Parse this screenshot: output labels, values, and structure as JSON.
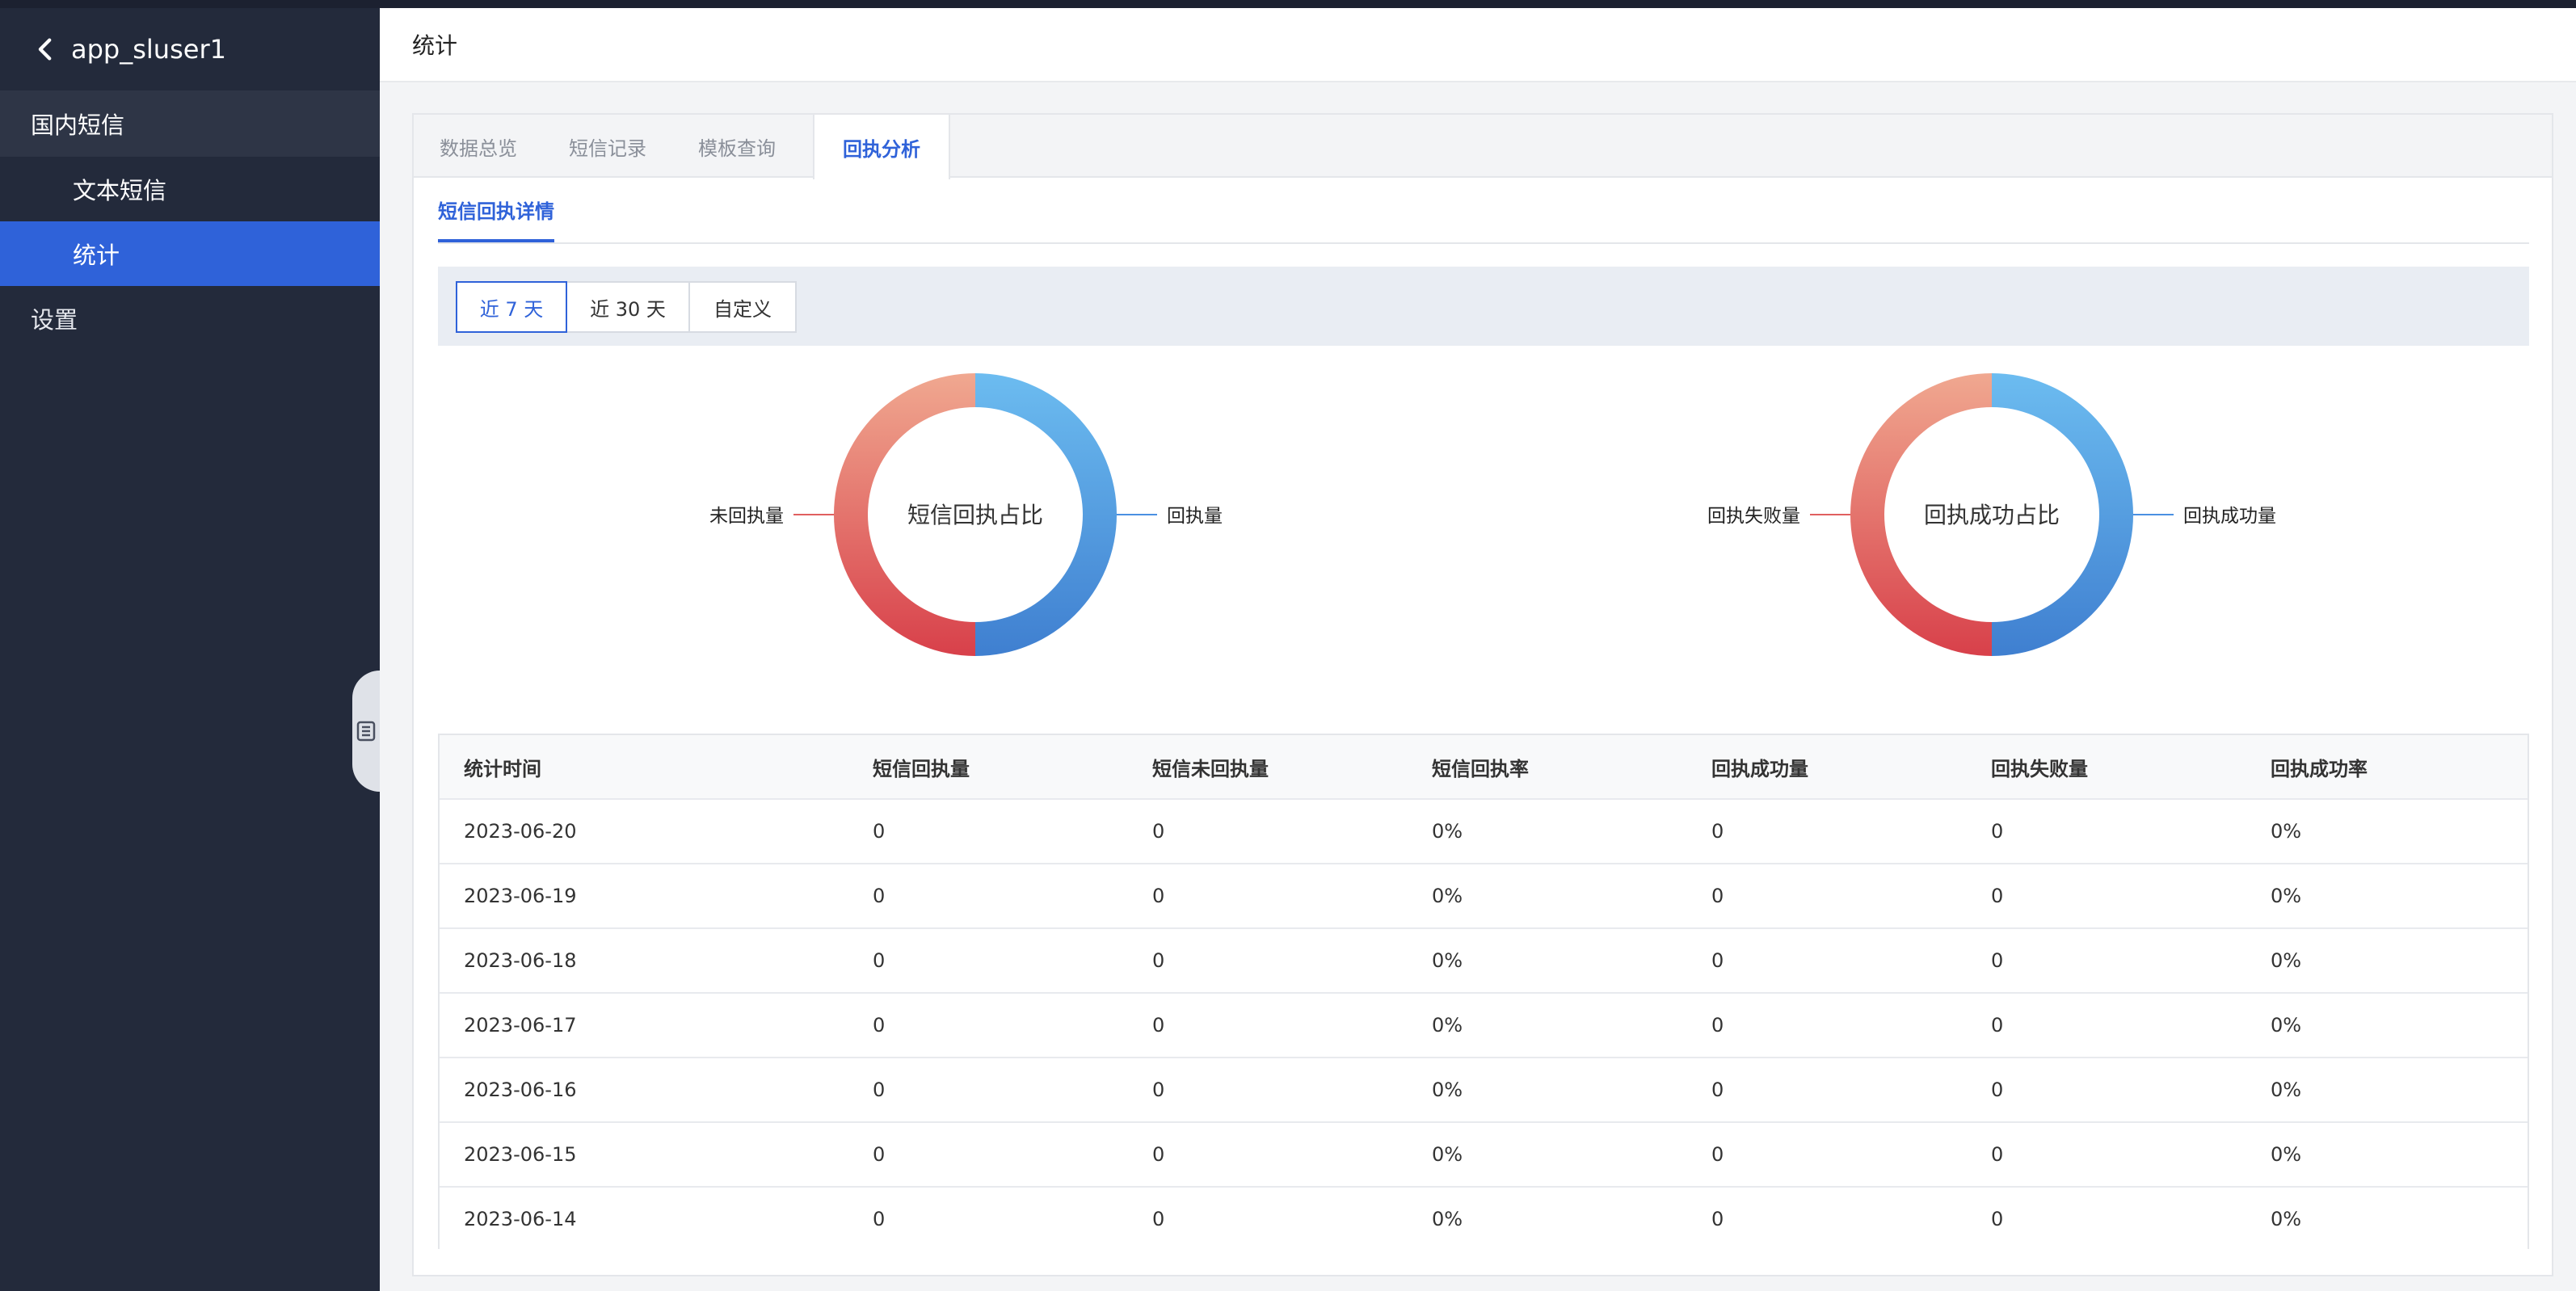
{
  "app": {
    "back_label": "app_sluser1"
  },
  "sidebar": {
    "group_label": "国内短信",
    "sub_items": [
      {
        "label": "文本短信"
      },
      {
        "label": "统计"
      }
    ],
    "settings_label": "设置"
  },
  "header": {
    "title": "统计"
  },
  "tabs": [
    {
      "label": "数据总览"
    },
    {
      "label": "短信记录"
    },
    {
      "label": "模板查询"
    },
    {
      "label": "回执分析"
    }
  ],
  "subtab": {
    "label": "短信回执详情"
  },
  "range_buttons": [
    {
      "label": "近 7 天"
    },
    {
      "label": "近 30 天"
    },
    {
      "label": "自定义"
    }
  ],
  "colors": {
    "accent": "#2f62d9",
    "sidebar_bg": "#232a3b",
    "donut_blue": "#4a90e2",
    "donut_red": "#e06060"
  },
  "chart_data": [
    {
      "type": "pie",
      "title": "短信回执占比",
      "labels": [
        "回执量",
        "未回执量"
      ],
      "values": [
        0,
        0
      ]
    },
    {
      "type": "pie",
      "title": "回执成功占比",
      "labels": [
        "回执成功量",
        "回执失败量"
      ],
      "values": [
        0,
        0
      ]
    }
  ],
  "table": {
    "columns": [
      "统计时间",
      "短信回执量",
      "短信未回执量",
      "短信回执率",
      "回执成功量",
      "回执失败量",
      "回执成功率"
    ],
    "rows": [
      [
        "2023-06-20",
        "0",
        "0",
        "0%",
        "0",
        "0",
        "0%"
      ],
      [
        "2023-06-19",
        "0",
        "0",
        "0%",
        "0",
        "0",
        "0%"
      ],
      [
        "2023-06-18",
        "0",
        "0",
        "0%",
        "0",
        "0",
        "0%"
      ],
      [
        "2023-06-17",
        "0",
        "0",
        "0%",
        "0",
        "0",
        "0%"
      ],
      [
        "2023-06-16",
        "0",
        "0",
        "0%",
        "0",
        "0",
        "0%"
      ],
      [
        "2023-06-15",
        "0",
        "0",
        "0%",
        "0",
        "0",
        "0%"
      ],
      [
        "2023-06-14",
        "0",
        "0",
        "0%",
        "0",
        "0",
        "0%"
      ]
    ]
  }
}
